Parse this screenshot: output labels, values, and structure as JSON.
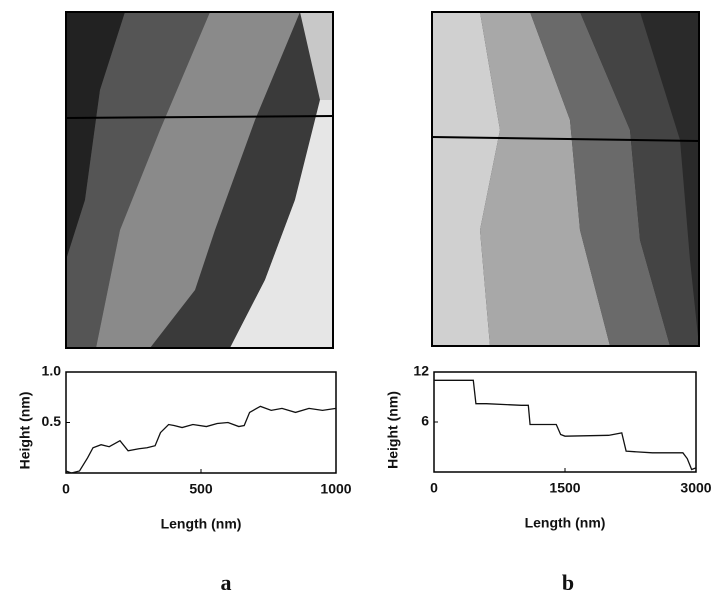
{
  "chart_data": [
    {
      "type": "line",
      "panel": "a",
      "xlabel": "Length (nm)",
      "ylabel": "Height (nm)",
      "x": [
        0,
        20,
        50,
        80,
        100,
        130,
        160,
        200,
        230,
        270,
        300,
        330,
        350,
        380,
        400,
        430,
        470,
        520,
        560,
        600,
        640,
        660,
        680,
        720,
        760,
        800,
        850,
        900,
        950,
        1000
      ],
      "values": [
        0.02,
        0.0,
        0.02,
        0.15,
        0.25,
        0.28,
        0.26,
        0.32,
        0.22,
        0.24,
        0.25,
        0.27,
        0.4,
        0.48,
        0.47,
        0.45,
        0.48,
        0.46,
        0.49,
        0.5,
        0.46,
        0.47,
        0.6,
        0.66,
        0.62,
        0.64,
        0.6,
        0.64,
        0.62,
        0.64
      ],
      "color": "#111111",
      "xlim": [
        0,
        1000
      ],
      "xticks": [
        0,
        500,
        1000
      ],
      "ylim": [
        0,
        1
      ],
      "yticks": [
        0.5,
        {
          "value": 1,
          "label": "1.0"
        }
      ]
    },
    {
      "type": "line",
      "panel": "b",
      "xlabel": "Length (nm)",
      "ylabel": "Height (nm)",
      "x": [
        0,
        400,
        450,
        480,
        600,
        1000,
        1080,
        1100,
        1400,
        1450,
        1500,
        2000,
        2150,
        2200,
        2500,
        2850,
        2900,
        2950,
        3000
      ],
      "values": [
        11,
        11,
        11,
        8.2,
        8.2,
        8.0,
        8.0,
        5.7,
        5.7,
        4.5,
        4.3,
        4.4,
        4.7,
        2.5,
        2.3,
        2.3,
        1.6,
        0.3,
        0.5
      ],
      "color": "#111111",
      "xlim": [
        0,
        3000
      ],
      "xticks": [
        0,
        1500,
        3000
      ],
      "ylim": [
        0,
        12
      ],
      "yticks": [
        6,
        12
      ]
    }
  ]
}
